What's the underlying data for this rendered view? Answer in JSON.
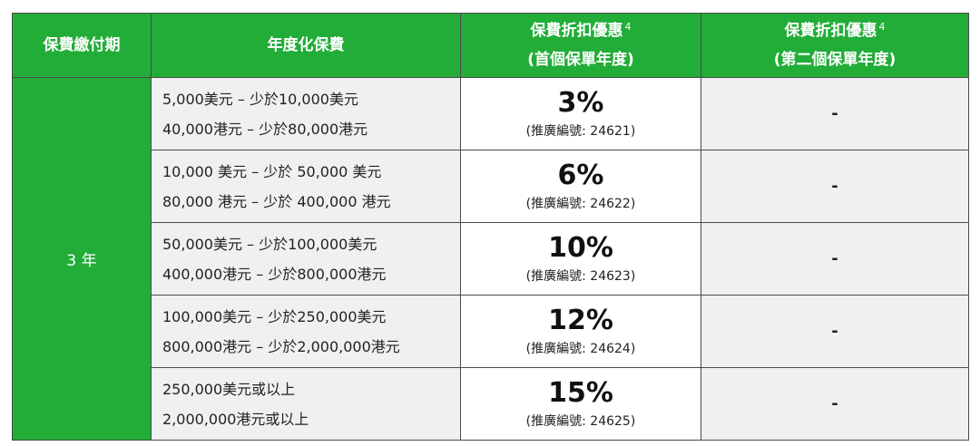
{
  "header": {
    "col1": "保費繳付期",
    "col2": "年度化保費",
    "col3_line1": "保費折扣優惠",
    "col3_sup": "4",
    "col3_line2": "(首個保單年度)",
    "col4_line1": "保費折扣優惠",
    "col4_sup": "4",
    "col4_line2": "(第二個保單年度)"
  },
  "term": "3 年",
  "rows": [
    {
      "band_usd": "5,000美元 – 少於10,000美元",
      "band_hkd": "40,000港元 – 少於80,000港元",
      "discount": "3%",
      "code": "(推廣編號: 24621)",
      "second_year": "-"
    },
    {
      "band_usd": "10,000 美元 – 少於 50,000 美元",
      "band_hkd": "80,000 港元 – 少於 400,000 港元",
      "discount": "6%",
      "code": "(推廣編號: 24622)",
      "second_year": "-"
    },
    {
      "band_usd": "50,000美元 – 少於100,000美元",
      "band_hkd": "400,000港元 – 少於800,000港元",
      "discount": "10%",
      "code": "(推廣編號: 24623)",
      "second_year": "-"
    },
    {
      "band_usd": "100,000美元 – 少於250,000美元",
      "band_hkd": "800,000港元 – 少於2,000,000港元",
      "discount": "12%",
      "code": "(推廣編號: 24624)",
      "second_year": "-"
    },
    {
      "band_usd": "250,000美元或以上",
      "band_hkd": "2,000,000港元或以上",
      "discount": "15%",
      "code": "(推廣編號: 24625)",
      "second_year": "-"
    }
  ],
  "colors": {
    "header_green": "#22ad38",
    "band_grey": "#f0f0f0",
    "border": "#4a4a4a"
  }
}
